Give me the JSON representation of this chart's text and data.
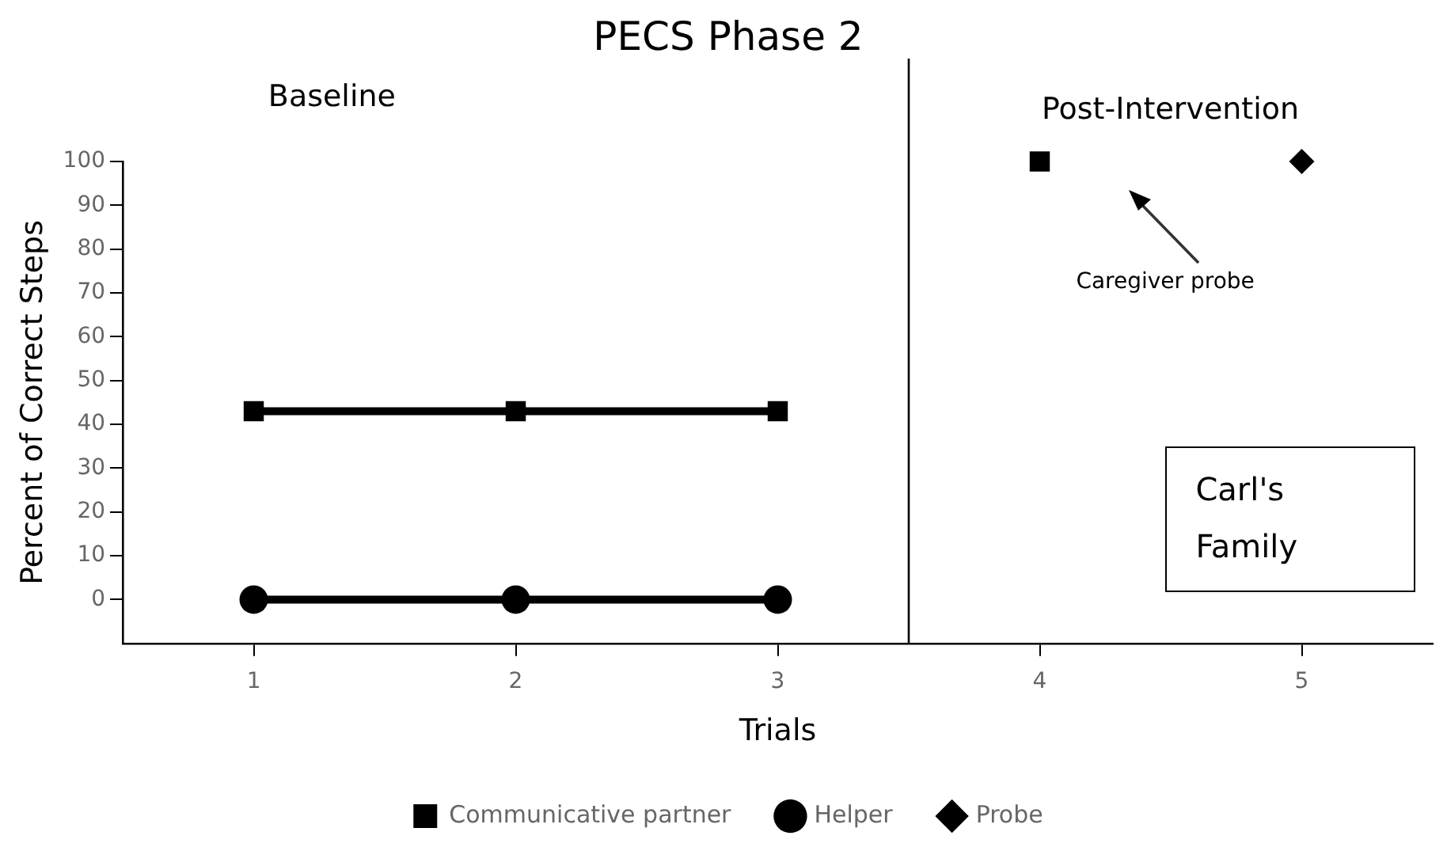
{
  "chart_data": {
    "type": "line",
    "title": "PECS Phase 2",
    "xlabel": "Trials",
    "ylabel": "Percent of Correct Steps",
    "x": [
      1,
      2,
      3,
      4,
      5
    ],
    "xlim": [
      0.5,
      5.5
    ],
    "xticks": [
      1,
      2,
      3,
      4,
      5
    ],
    "ylim": [
      -10,
      100
    ],
    "yticks": [
      0,
      10,
      20,
      30,
      40,
      50,
      60,
      70,
      80,
      90,
      100
    ],
    "series": [
      {
        "name": "Communicative partner",
        "color": "#000000",
        "marker": "square",
        "values": [
          43,
          43,
          43,
          null,
          null
        ]
      },
      {
        "name": "Helper",
        "color": "#000000",
        "marker": "circle",
        "values": [
          0,
          0,
          0,
          null,
          null
        ]
      },
      {
        "name": "Probe",
        "color": "#000000",
        "marker": "diamond",
        "values": [
          null,
          null,
          null,
          null,
          100
        ]
      },
      {
        "color": "#000000",
        "marker": "square",
        "values": [
          null,
          null,
          null,
          100,
          null
        ]
      }
    ],
    "ref_lines": [
      {
        "axis": "x",
        "value": 3.5,
        "color": "#000000"
      }
    ],
    "annotations": [
      "Baseline",
      "Post-Intervention",
      "Caregiver probe",
      "Carl's Family"
    ],
    "grid": false,
    "legend": "bottom",
    "line_style": "solid"
  }
}
